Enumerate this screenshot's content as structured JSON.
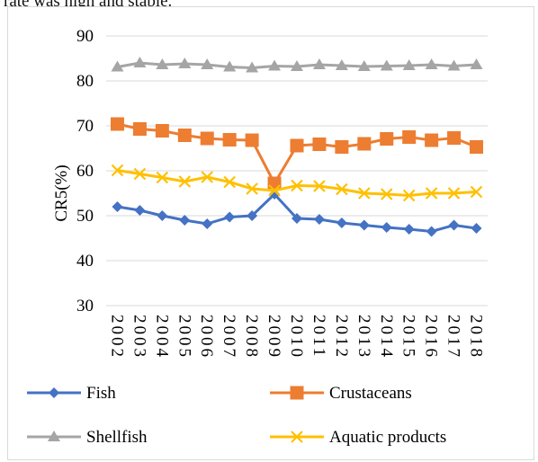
{
  "snippet": "rate was high and stable.",
  "chart_data": {
    "type": "line",
    "ylabel": "CR5(%)",
    "xlabel": "",
    "title": "",
    "ylim": [
      30,
      90
    ],
    "yticks": [
      30,
      40,
      50,
      60,
      70,
      80,
      90
    ],
    "grid": "horizontal",
    "legend_position": "bottom",
    "categories": [
      "2002",
      "2003",
      "2004",
      "2005",
      "2006",
      "2007",
      "2008",
      "2009",
      "2010",
      "2011",
      "2012",
      "2013",
      "2014",
      "2015",
      "2016",
      "2017",
      "2018"
    ],
    "series": [
      {
        "name": "Fish",
        "color": "#4472c4",
        "marker": "diamond",
        "values": [
          52.0,
          51.2,
          50.0,
          49.0,
          48.2,
          49.7,
          50.0,
          54.8,
          49.4,
          49.2,
          48.4,
          47.9,
          47.4,
          47.0,
          46.5,
          47.9,
          47.2
        ]
      },
      {
        "name": "Crustaceans",
        "color": "#ed7d31",
        "marker": "square",
        "values": [
          70.4,
          69.3,
          68.9,
          67.9,
          67.2,
          66.9,
          66.8,
          57.2,
          65.6,
          65.9,
          65.3,
          66.0,
          67.1,
          67.5,
          66.8,
          67.3,
          65.3
        ]
      },
      {
        "name": "Shellfish",
        "color": "#a5a5a5",
        "marker": "triangle",
        "values": [
          83.1,
          84.0,
          83.6,
          83.8,
          83.6,
          83.1,
          82.9,
          83.3,
          83.2,
          83.6,
          83.4,
          83.2,
          83.3,
          83.4,
          83.6,
          83.3,
          83.6
        ]
      },
      {
        "name": "Aquatic products",
        "color": "#ffc000",
        "marker": "x",
        "values": [
          60.1,
          59.3,
          58.5,
          57.6,
          58.6,
          57.5,
          56.0,
          55.6,
          56.7,
          56.6,
          55.9,
          55.0,
          54.8,
          54.5,
          55.0,
          55.0,
          55.3
        ]
      }
    ]
  }
}
